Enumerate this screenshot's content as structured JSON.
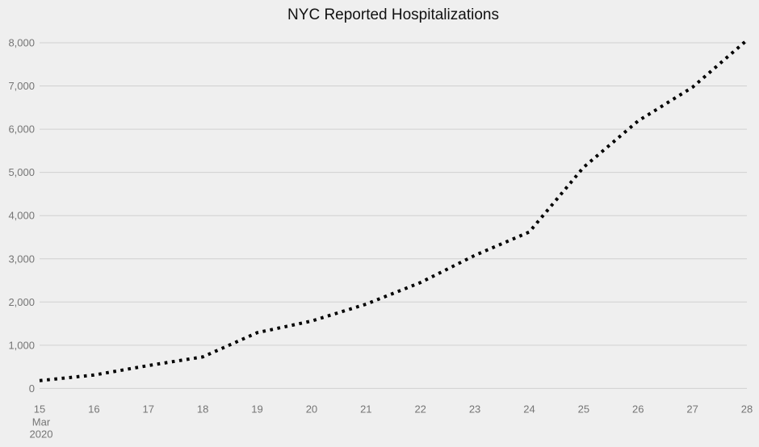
{
  "chart_data": {
    "type": "line",
    "line_style": "dotted",
    "title": "NYC Reported Hospitalizations",
    "x": [
      15,
      16,
      17,
      18,
      19,
      20,
      21,
      22,
      23,
      24,
      25,
      26,
      27,
      28
    ],
    "x_tick_labels": [
      "15",
      "16",
      "17",
      "18",
      "19",
      "20",
      "21",
      "22",
      "23",
      "24",
      "25",
      "26",
      "27",
      "28"
    ],
    "x_axis_footnote": [
      "Mar",
      "2020"
    ],
    "series": [
      {
        "name": "Reported Hospitalizations",
        "values": [
          180,
          310,
          530,
          730,
          1290,
          1560,
          1950,
          2450,
          3080,
          3620,
          5120,
          6190,
          6970,
          8060
        ]
      }
    ],
    "ylim": [
      0,
      8000
    ],
    "y_tick_interval": 1000,
    "y_tick_labels": [
      "0",
      "1,000",
      "2,000",
      "3,000",
      "4,000",
      "5,000",
      "6,000",
      "7,000",
      "8,000"
    ],
    "grid": true,
    "legend": false,
    "colors": {
      "background": "#efefef",
      "gridline": "#d0d0d0",
      "axis_text": "#757575",
      "title_text": "#111111",
      "series": "#000000"
    }
  }
}
